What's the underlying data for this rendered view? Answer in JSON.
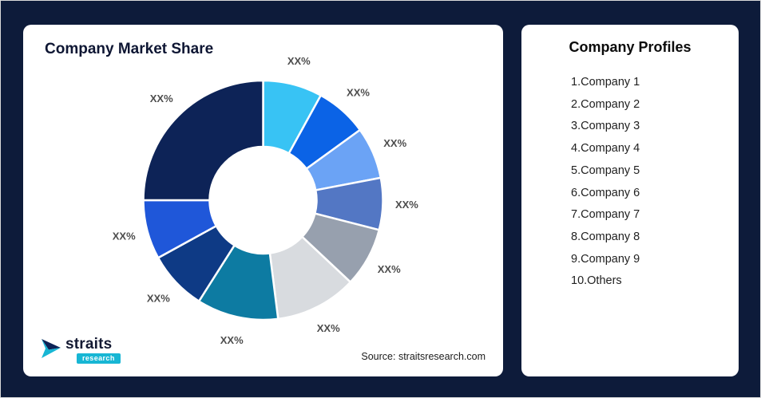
{
  "chart_card": {
    "title": "Company Market Share",
    "source": "Source: straitsresearch.com"
  },
  "logo": {
    "name": "straits",
    "sub": "research",
    "accent_color": "#17b6d4"
  },
  "profiles": {
    "title": "Company Profiles",
    "items": [
      "1.Company 1",
      "2.Company 2",
      "3.Company 3",
      "4.Company 4",
      "5.Company 5",
      "6.Company 6",
      "7.Company 7",
      "8.Company 8",
      "9.Company 9",
      "10.Others"
    ]
  },
  "chart_data": {
    "type": "pie",
    "subtype": "donut",
    "title": "Company Market Share",
    "categories": [
      "Company 1",
      "Company 2",
      "Company 3",
      "Company 4",
      "Company 5",
      "Company 6",
      "Company 7",
      "Company 8",
      "Company 9",
      "Others"
    ],
    "segment_labels": [
      "XX%",
      "XX%",
      "XX%",
      "XX%",
      "XX%",
      "XX%",
      "XX%",
      "XX%",
      "XX%",
      "XX%"
    ],
    "values": [
      8,
      7,
      7,
      7,
      8,
      11,
      11,
      8,
      8,
      25
    ],
    "colors": [
      "#38c3f4",
      "#0b63e6",
      "#6ba3f5",
      "#5377c4",
      "#97a0ae",
      "#d8dbdf",
      "#0d7ba2",
      "#0e3a85",
      "#1f57d9",
      "#0d2357"
    ],
    "start_angle_deg": -90,
    "direction": "clockwise",
    "inner_radius_ratio": 0.45,
    "legend_position": "none",
    "gridlines": false
  }
}
